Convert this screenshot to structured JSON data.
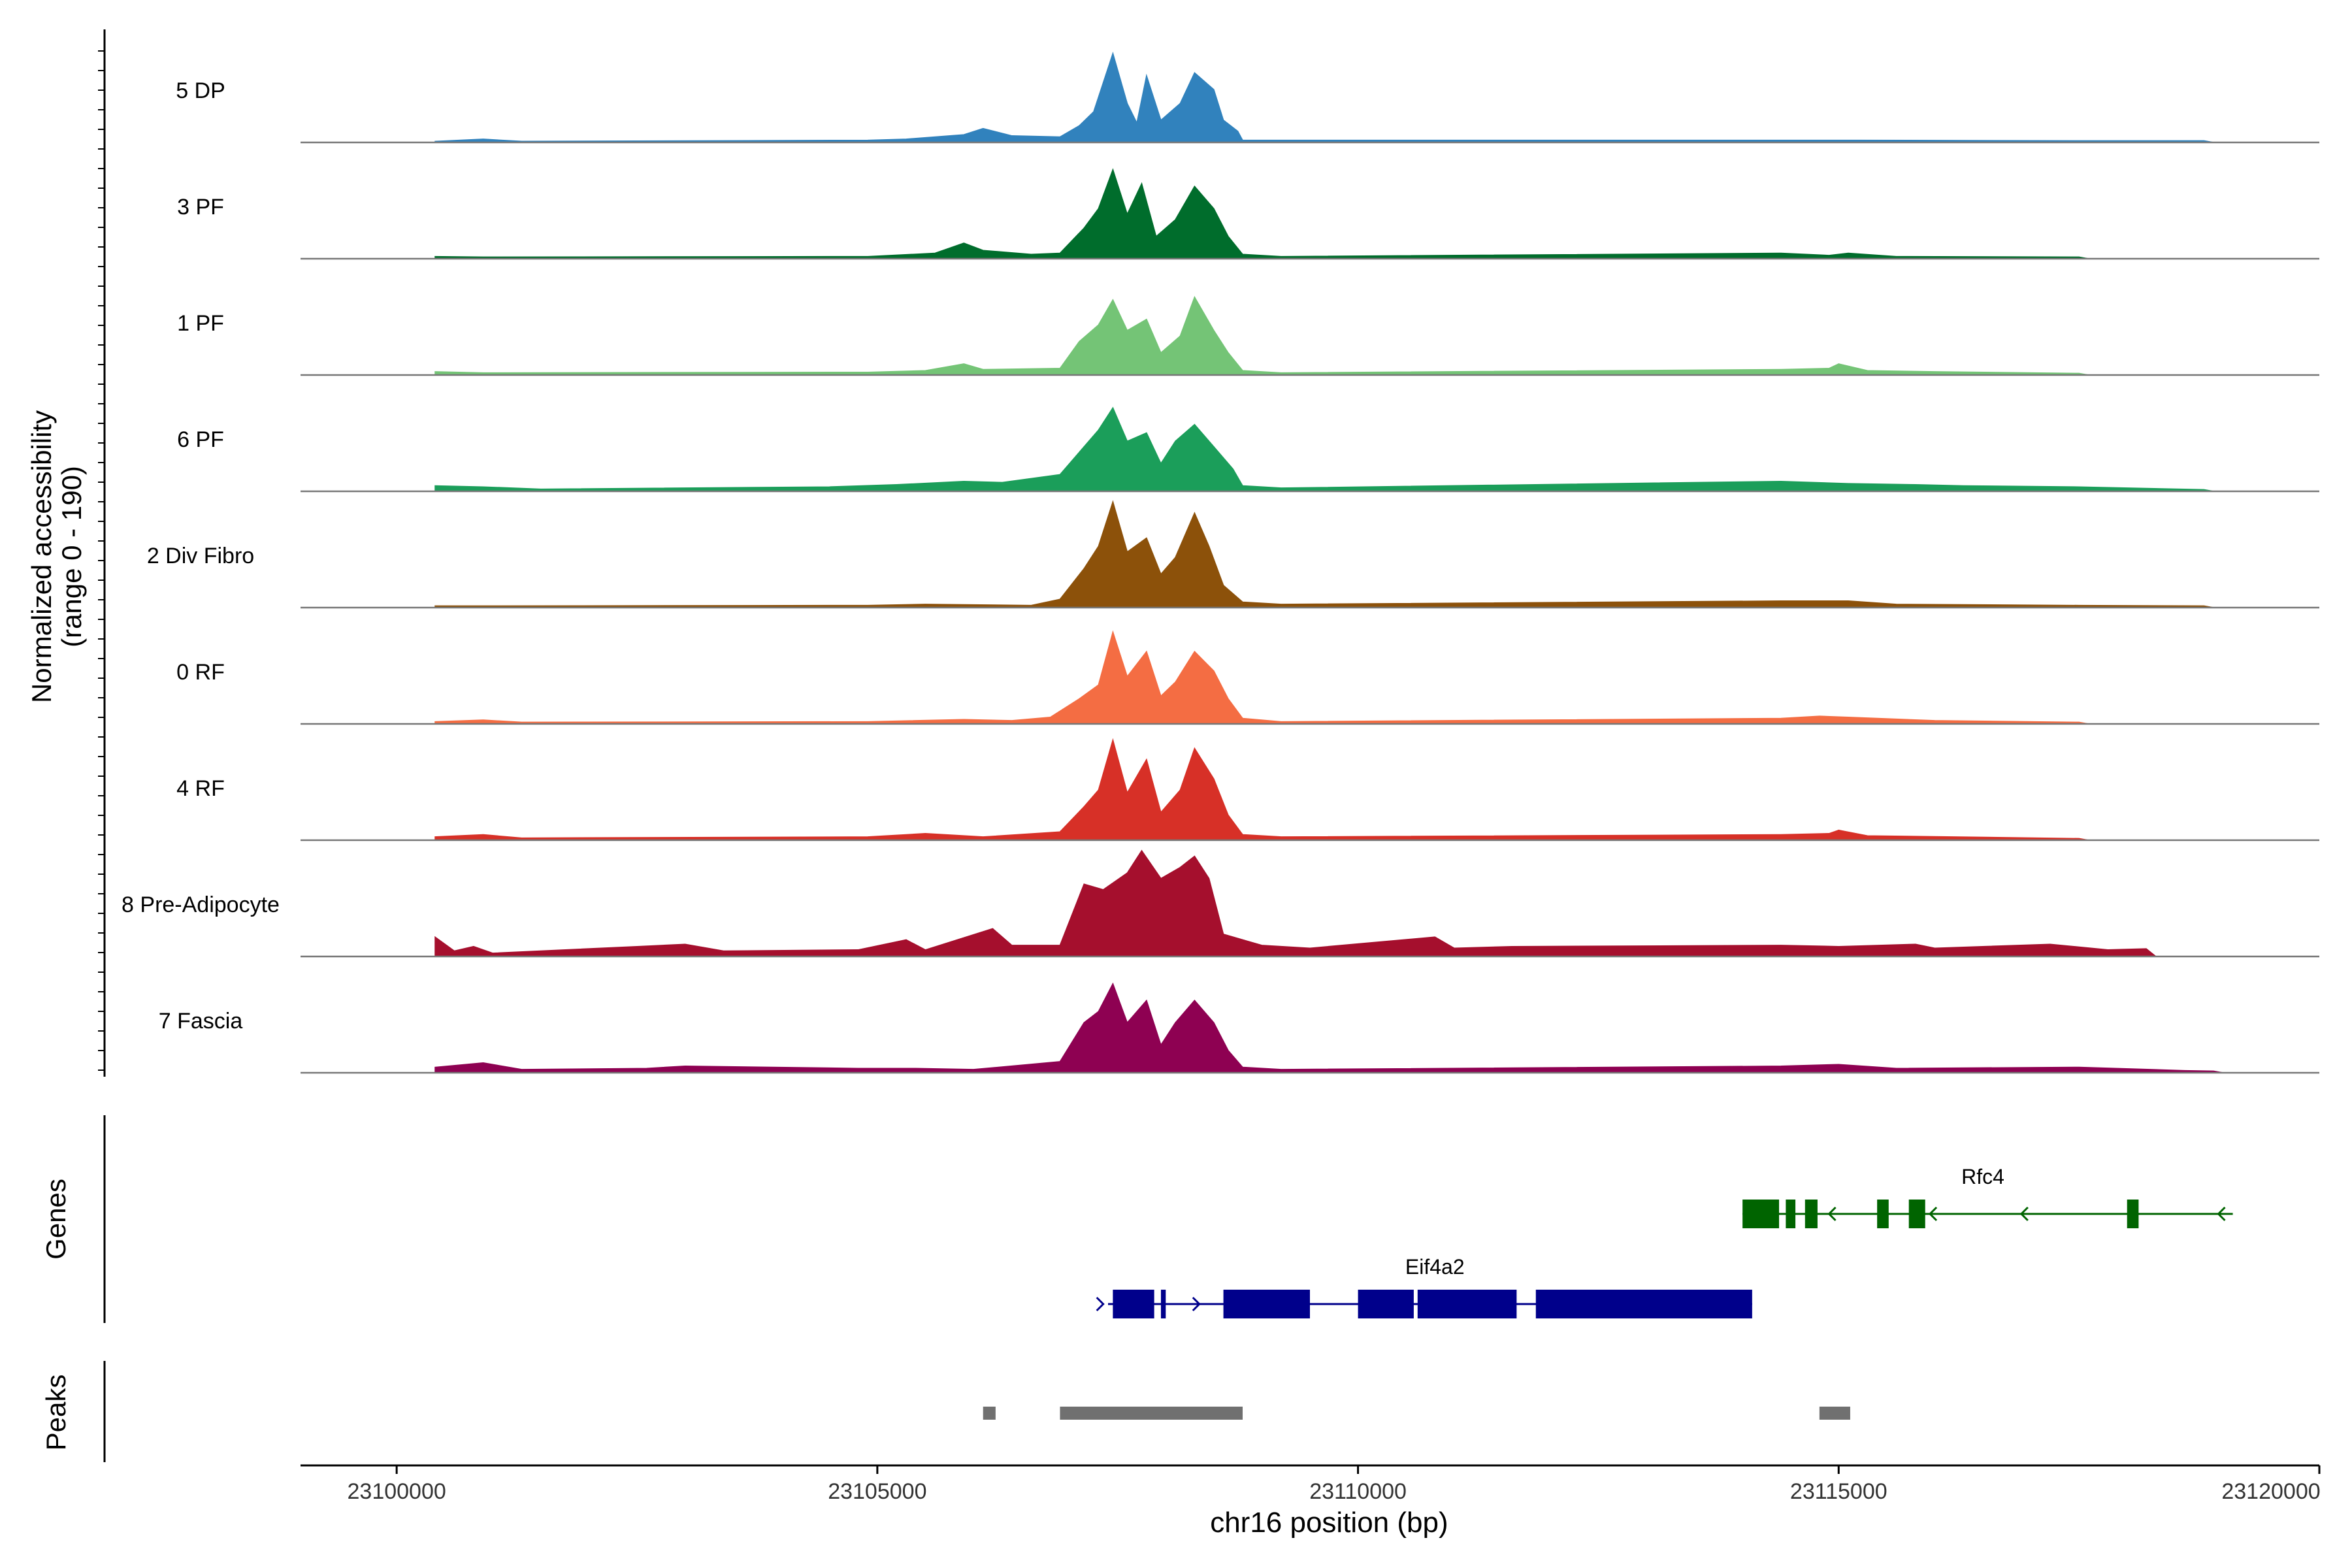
{
  "chart_data": {
    "type": "area",
    "title": "",
    "xlabel": "chr16 position (bp)",
    "ylabel": "Normalized accessibility",
    "ylabel_range": "(range 0 - 190)",
    "ylim": [
      0,
      190
    ],
    "xlim": [
      23099000,
      23120000
    ],
    "x_ticks": [
      23100000,
      23105000,
      23110000,
      23115000,
      23120000
    ],
    "x_tick_labels": [
      "23100000",
      "23105000",
      "23110000",
      "23115000",
      "23120000"
    ],
    "series": [
      {
        "name": "5 DP",
        "color": "#3182BD",
        "points": [
          [
            23100400,
            2
          ],
          [
            23100900,
            6
          ],
          [
            23101300,
            2
          ],
          [
            23104900,
            4
          ],
          [
            23105300,
            6
          ],
          [
            23105900,
            14
          ],
          [
            23106100,
            25
          ],
          [
            23106400,
            12
          ],
          [
            23106900,
            10
          ],
          [
            23107100,
            30
          ],
          [
            23107250,
            55
          ],
          [
            23107450,
            160
          ],
          [
            23107600,
            70
          ],
          [
            23107700,
            35
          ],
          [
            23107800,
            120
          ],
          [
            23107950,
            40
          ],
          [
            23108150,
            70
          ],
          [
            23108300,
            125
          ],
          [
            23108500,
            95
          ],
          [
            23108600,
            40
          ],
          [
            23108750,
            20
          ],
          [
            23108800,
            4
          ],
          [
            23109200,
            4
          ],
          [
            23114700,
            4
          ],
          [
            23115200,
            4
          ],
          [
            23117500,
            3
          ],
          [
            23118800,
            3
          ]
        ]
      },
      {
        "name": "3 PF",
        "color": "#006D2C",
        "points": [
          [
            23100400,
            4
          ],
          [
            23100900,
            3
          ],
          [
            23104900,
            4
          ],
          [
            23105600,
            10
          ],
          [
            23105900,
            28
          ],
          [
            23106100,
            15
          ],
          [
            23106600,
            8
          ],
          [
            23106900,
            10
          ],
          [
            23107150,
            55
          ],
          [
            23107300,
            90
          ],
          [
            23107450,
            160
          ],
          [
            23107600,
            80
          ],
          [
            23107750,
            135
          ],
          [
            23107900,
            40
          ],
          [
            23108100,
            70
          ],
          [
            23108300,
            130
          ],
          [
            23108500,
            90
          ],
          [
            23108650,
            40
          ],
          [
            23108800,
            8
          ],
          [
            23109200,
            4
          ],
          [
            23114400,
            10
          ],
          [
            23114900,
            6
          ],
          [
            23115100,
            10
          ],
          [
            23115600,
            4
          ],
          [
            23117500,
            3
          ]
        ]
      },
      {
        "name": "1 PF",
        "color": "#74C476",
        "points": [
          [
            23100400,
            6
          ],
          [
            23100900,
            4
          ],
          [
            23104900,
            5
          ],
          [
            23105500,
            8
          ],
          [
            23105900,
            20
          ],
          [
            23106100,
            10
          ],
          [
            23106900,
            12
          ],
          [
            23107100,
            60
          ],
          [
            23107300,
            90
          ],
          [
            23107450,
            135
          ],
          [
            23107600,
            80
          ],
          [
            23107800,
            100
          ],
          [
            23107950,
            40
          ],
          [
            23108150,
            70
          ],
          [
            23108300,
            140
          ],
          [
            23108500,
            80
          ],
          [
            23108650,
            40
          ],
          [
            23108800,
            8
          ],
          [
            23109200,
            4
          ],
          [
            23114400,
            10
          ],
          [
            23114900,
            12
          ],
          [
            23115000,
            20
          ],
          [
            23115300,
            8
          ],
          [
            23116000,
            6
          ],
          [
            23117500,
            3
          ]
        ]
      },
      {
        "name": "6 PF",
        "color": "#1B9E5A",
        "points": [
          [
            23100400,
            10
          ],
          [
            23100900,
            8
          ],
          [
            23101500,
            4
          ],
          [
            23104500,
            8
          ],
          [
            23105200,
            12
          ],
          [
            23105900,
            18
          ],
          [
            23106300,
            16
          ],
          [
            23106900,
            30
          ],
          [
            23107150,
            80
          ],
          [
            23107300,
            110
          ],
          [
            23107450,
            150
          ],
          [
            23107600,
            90
          ],
          [
            23107800,
            105
          ],
          [
            23107950,
            50
          ],
          [
            23108100,
            90
          ],
          [
            23108300,
            120
          ],
          [
            23108500,
            80
          ],
          [
            23108700,
            40
          ],
          [
            23108800,
            10
          ],
          [
            23109200,
            6
          ],
          [
            23114400,
            18
          ],
          [
            23115100,
            14
          ],
          [
            23115800,
            12
          ],
          [
            23116300,
            10
          ],
          [
            23117500,
            8
          ],
          [
            23118800,
            3
          ]
        ]
      },
      {
        "name": "2 Div Fibro",
        "color": "#8C510A",
        "points": [
          [
            23100400,
            3
          ],
          [
            23100900,
            3
          ],
          [
            23104900,
            4
          ],
          [
            23105500,
            6
          ],
          [
            23106600,
            4
          ],
          [
            23106900,
            15
          ],
          [
            23107150,
            70
          ],
          [
            23107300,
            110
          ],
          [
            23107450,
            190
          ],
          [
            23107600,
            100
          ],
          [
            23107800,
            125
          ],
          [
            23107950,
            60
          ],
          [
            23108100,
            90
          ],
          [
            23108300,
            170
          ],
          [
            23108450,
            110
          ],
          [
            23108600,
            40
          ],
          [
            23108800,
            10
          ],
          [
            23109200,
            6
          ],
          [
            23114400,
            12
          ],
          [
            23115100,
            12
          ],
          [
            23115600,
            6
          ],
          [
            23117500,
            4
          ],
          [
            23118800,
            3
          ]
        ]
      },
      {
        "name": "0 RF",
        "color": "#F46D43",
        "points": [
          [
            23100400,
            4
          ],
          [
            23100900,
            7
          ],
          [
            23101300,
            3
          ],
          [
            23104900,
            4
          ],
          [
            23105900,
            8
          ],
          [
            23106400,
            6
          ],
          [
            23106800,
            12
          ],
          [
            23107100,
            45
          ],
          [
            23107300,
            70
          ],
          [
            23107450,
            165
          ],
          [
            23107600,
            85
          ],
          [
            23107800,
            130
          ],
          [
            23107950,
            50
          ],
          [
            23108100,
            75
          ],
          [
            23108300,
            130
          ],
          [
            23108500,
            95
          ],
          [
            23108650,
            45
          ],
          [
            23108800,
            10
          ],
          [
            23109200,
            4
          ],
          [
            23114400,
            10
          ],
          [
            23114800,
            14
          ],
          [
            23115100,
            12
          ],
          [
            23116000,
            6
          ],
          [
            23117500,
            3
          ]
        ]
      },
      {
        "name": "4 RF",
        "color": "#D73027",
        "points": [
          [
            23100400,
            6
          ],
          [
            23100900,
            10
          ],
          [
            23101300,
            4
          ],
          [
            23104900,
            6
          ],
          [
            23105500,
            12
          ],
          [
            23106100,
            6
          ],
          [
            23106900,
            15
          ],
          [
            23107150,
            60
          ],
          [
            23107300,
            90
          ],
          [
            23107450,
            180
          ],
          [
            23107600,
            85
          ],
          [
            23107800,
            145
          ],
          [
            23107950,
            50
          ],
          [
            23108150,
            90
          ],
          [
            23108300,
            165
          ],
          [
            23108500,
            110
          ],
          [
            23108650,
            45
          ],
          [
            23108800,
            10
          ],
          [
            23109200,
            6
          ],
          [
            23114400,
            10
          ],
          [
            23114900,
            12
          ],
          [
            23115000,
            18
          ],
          [
            23115300,
            8
          ],
          [
            23117500,
            3
          ]
        ]
      },
      {
        "name": "8 Pre-Adipocyte",
        "color": "#A50F2D",
        "points": [
          [
            23100400,
            35
          ],
          [
            23100600,
            10
          ],
          [
            23100800,
            18
          ],
          [
            23101000,
            6
          ],
          [
            23102500,
            18
          ],
          [
            23103000,
            22
          ],
          [
            23103400,
            10
          ],
          [
            23104800,
            12
          ],
          [
            23105300,
            30
          ],
          [
            23105500,
            12
          ],
          [
            23106200,
            50
          ],
          [
            23106400,
            20
          ],
          [
            23106900,
            20
          ],
          [
            23107150,
            130
          ],
          [
            23107350,
            120
          ],
          [
            23107600,
            150
          ],
          [
            23107750,
            190
          ],
          [
            23107950,
            140
          ],
          [
            23108150,
            160
          ],
          [
            23108300,
            180
          ],
          [
            23108450,
            140
          ],
          [
            23108600,
            40
          ],
          [
            23109000,
            20
          ],
          [
            23109500,
            15
          ],
          [
            23110800,
            35
          ],
          [
            23111000,
            15
          ],
          [
            23111600,
            18
          ],
          [
            23114400,
            20
          ],
          [
            23115000,
            18
          ],
          [
            23115800,
            22
          ],
          [
            23116000,
            15
          ],
          [
            23117200,
            22
          ],
          [
            23117800,
            12
          ],
          [
            23118200,
            14
          ]
        ]
      },
      {
        "name": "7 Fascia",
        "color": "#8E0152",
        "points": [
          [
            23100400,
            10
          ],
          [
            23100900,
            18
          ],
          [
            23101300,
            6
          ],
          [
            23102600,
            8
          ],
          [
            23103000,
            12
          ],
          [
            23104800,
            8
          ],
          [
            23105400,
            8
          ],
          [
            23106000,
            6
          ],
          [
            23106900,
            20
          ],
          [
            23107150,
            90
          ],
          [
            23107300,
            110
          ],
          [
            23107450,
            160
          ],
          [
            23107600,
            90
          ],
          [
            23107800,
            130
          ],
          [
            23107950,
            50
          ],
          [
            23108100,
            90
          ],
          [
            23108300,
            130
          ],
          [
            23108500,
            90
          ],
          [
            23108650,
            40
          ],
          [
            23108800,
            10
          ],
          [
            23109200,
            6
          ],
          [
            23114400,
            12
          ],
          [
            23115000,
            15
          ],
          [
            23115600,
            8
          ],
          [
            23117500,
            10
          ],
          [
            23118600,
            4
          ],
          [
            23118900,
            3
          ]
        ]
      }
    ],
    "genes": [
      {
        "name": "Rfc4",
        "strand": "-",
        "color": "#006400",
        "start": 23114000,
        "end": 23119100,
        "exons": [
          [
            23114000,
            23114380
          ],
          [
            23114450,
            23114550
          ],
          [
            23114650,
            23114780
          ],
          [
            23115400,
            23115520
          ],
          [
            23115730,
            23115900
          ],
          [
            23118000,
            23118120
          ]
        ]
      },
      {
        "name": "Eif4a2",
        "strand": "+",
        "color": "#00008B",
        "start": 23107400,
        "end": 23114100,
        "exons": [
          [
            23107450,
            23107880
          ],
          [
            23107950,
            23108000
          ],
          [
            23108600,
            23109500
          ],
          [
            23110000,
            23110580
          ],
          [
            23110620,
            23111650
          ],
          [
            23111850,
            23114100
          ]
        ]
      }
    ],
    "peaks": [
      [
        23106100,
        23106230
      ],
      [
        23106900,
        23108800
      ],
      [
        23114800,
        23115120
      ]
    ],
    "panels": {
      "genes": "Genes",
      "peaks": "Peaks"
    }
  }
}
